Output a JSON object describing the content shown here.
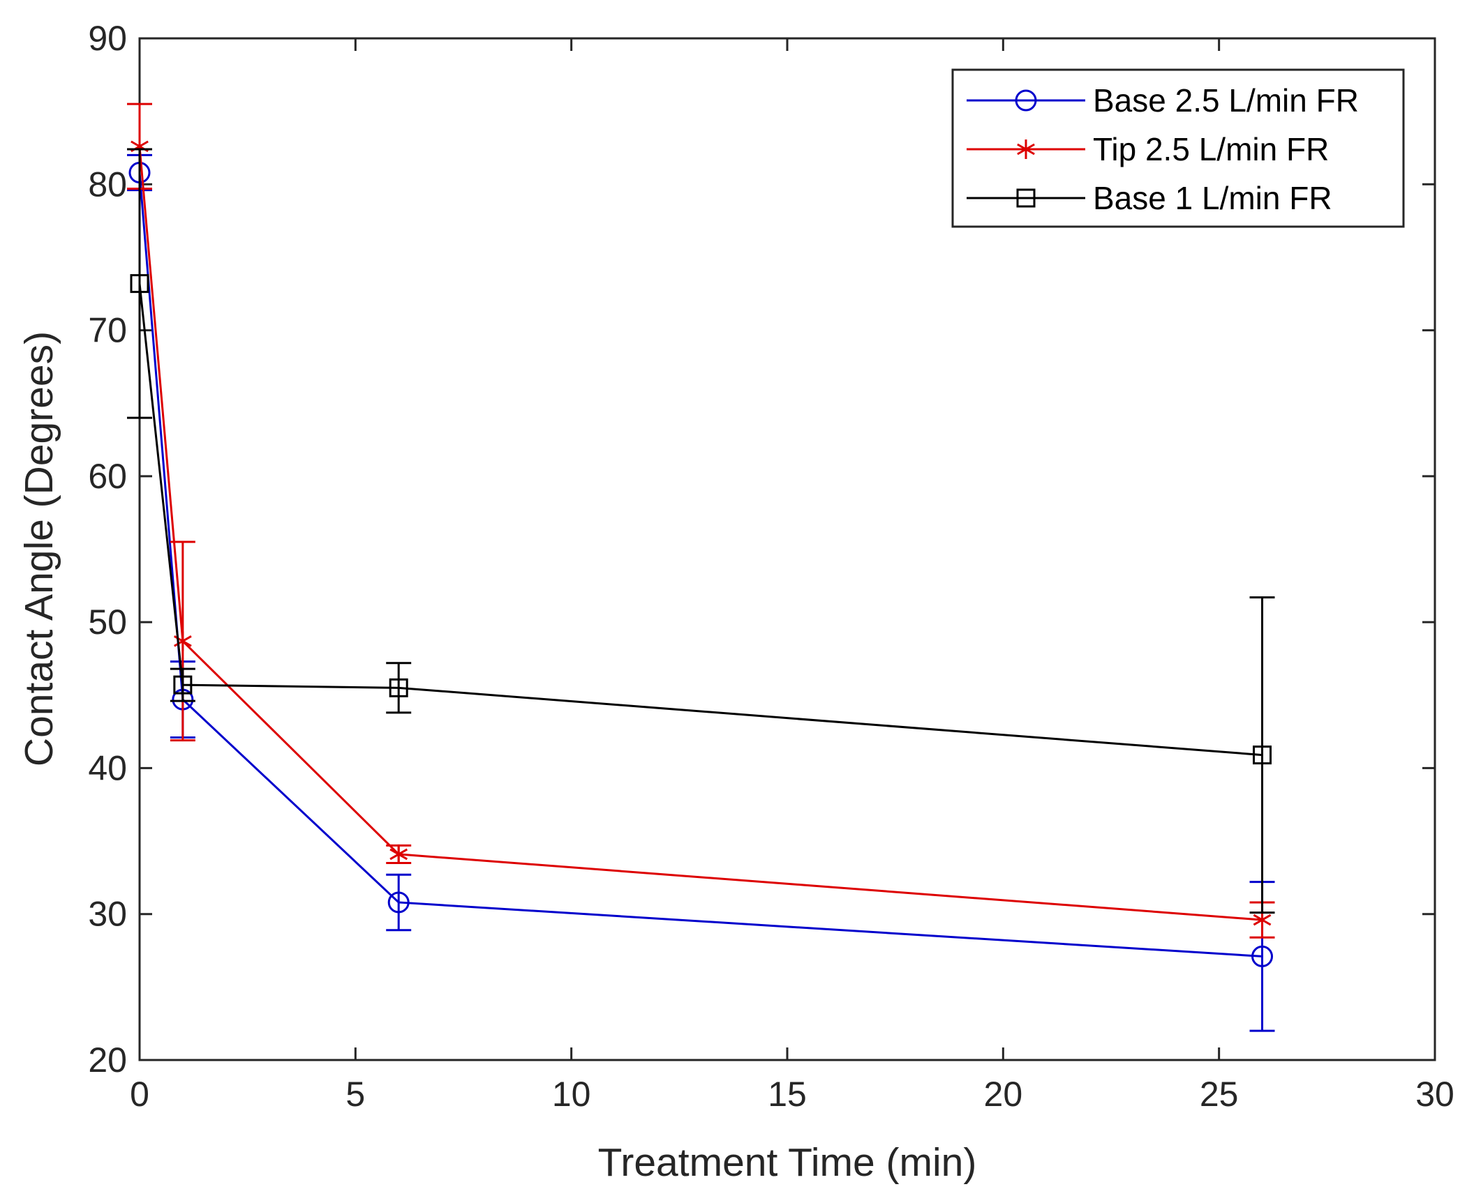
{
  "chart_data": {
    "type": "line",
    "title": "",
    "xlabel": "Treatment Time (min)",
    "ylabel": "Contact Angle (Degrees)",
    "xlim": [
      0,
      30
    ],
    "ylim": [
      20,
      90
    ],
    "xticks": [
      0,
      5,
      10,
      15,
      20,
      25,
      30
    ],
    "yticks": [
      20,
      30,
      40,
      50,
      60,
      70,
      80,
      90
    ],
    "grid": false,
    "legend_position": "top-right",
    "series": [
      {
        "name": "Base 2.5 L/min FR",
        "color": "#0000cc",
        "marker": "circle",
        "x": [
          0,
          1,
          6,
          26
        ],
        "y": [
          80.8,
          44.7,
          30.8,
          27.1
        ],
        "error": [
          1.2,
          2.6,
          1.9,
          5.1
        ]
      },
      {
        "name": "Tip 2.5 L/min FR",
        "color": "#dd0000",
        "marker": "asterisk",
        "x": [
          0,
          1,
          6,
          26
        ],
        "y": [
          82.6,
          48.7,
          34.1,
          29.6
        ],
        "error": [
          2.9,
          6.8,
          0.6,
          1.2
        ]
      },
      {
        "name": "Base 1 L/min FR",
        "color": "#000000",
        "marker": "square",
        "x": [
          0,
          1,
          6,
          26
        ],
        "y": [
          73.2,
          45.7,
          45.5,
          40.9
        ],
        "error": [
          9.2,
          1.1,
          1.7,
          10.8
        ]
      }
    ]
  }
}
